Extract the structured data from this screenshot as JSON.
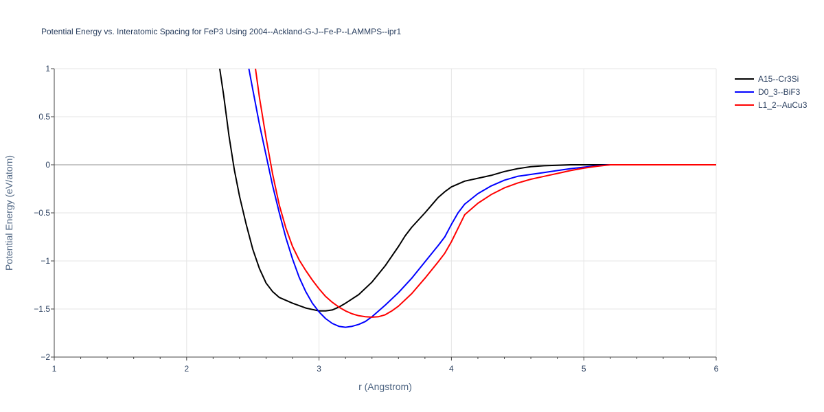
{
  "chart_data": {
    "type": "line",
    "title": "Potential Energy vs. Interatomic Spacing for FeP3 Using 2004--Ackland-G-J--Fe-P--LAMMPS--ipr1",
    "xlabel": "r (Angstrom)",
    "ylabel": "Potential Energy (eV/atom)",
    "xlim": [
      1,
      6
    ],
    "ylim": [
      -2,
      1
    ],
    "xticks": [
      1,
      2,
      3,
      4,
      5,
      6
    ],
    "xtick_labels": [
      "1",
      "2",
      "3",
      "4",
      "5",
      "6"
    ],
    "yticks": [
      -2,
      -1.5,
      -1,
      -0.5,
      0,
      0.5,
      1
    ],
    "ytick_labels": [
      "−2",
      "−1.5",
      "−1",
      "−0.5",
      "0",
      "0.5",
      "1"
    ],
    "grid": true,
    "legend_position": "top-right",
    "series": [
      {
        "name": "A15--Cr3Si",
        "color": "#000000",
        "x": [
          2.25,
          2.28,
          2.32,
          2.36,
          2.4,
          2.45,
          2.5,
          2.55,
          2.6,
          2.65,
          2.7,
          2.8,
          2.9,
          3.0,
          3.05,
          3.1,
          3.15,
          3.2,
          3.3,
          3.4,
          3.5,
          3.6,
          3.65,
          3.7,
          3.8,
          3.85,
          3.9,
          3.95,
          4.0,
          4.1,
          4.2,
          4.3,
          4.4,
          4.5,
          4.6,
          4.7,
          4.8,
          4.9,
          5.0,
          5.2,
          5.4,
          6.0
        ],
        "y": [
          1.0,
          0.72,
          0.3,
          -0.05,
          -0.33,
          -0.62,
          -0.88,
          -1.08,
          -1.23,
          -1.32,
          -1.38,
          -1.44,
          -1.49,
          -1.52,
          -1.52,
          -1.51,
          -1.48,
          -1.44,
          -1.35,
          -1.22,
          -1.05,
          -0.85,
          -0.74,
          -0.65,
          -0.5,
          -0.42,
          -0.34,
          -0.28,
          -0.23,
          -0.17,
          -0.14,
          -0.11,
          -0.07,
          -0.04,
          -0.02,
          -0.01,
          -0.005,
          0,
          0,
          0,
          0,
          0
        ]
      },
      {
        "name": "D0_3--BiF3",
        "color": "#0000ff",
        "x": [
          2.47,
          2.5,
          2.55,
          2.6,
          2.65,
          2.7,
          2.75,
          2.8,
          2.85,
          2.9,
          2.95,
          3.0,
          3.05,
          3.1,
          3.15,
          3.2,
          3.25,
          3.3,
          3.35,
          3.4,
          3.5,
          3.6,
          3.7,
          3.8,
          3.9,
          3.95,
          4.0,
          4.05,
          4.1,
          4.2,
          4.3,
          4.4,
          4.5,
          4.6,
          4.7,
          4.8,
          4.9,
          5.0,
          5.1,
          5.2,
          5.4,
          6.0
        ],
        "y": [
          1.0,
          0.78,
          0.42,
          0.1,
          -0.22,
          -0.5,
          -0.76,
          -0.98,
          -1.17,
          -1.32,
          -1.44,
          -1.53,
          -1.6,
          -1.65,
          -1.68,
          -1.69,
          -1.68,
          -1.66,
          -1.63,
          -1.58,
          -1.46,
          -1.33,
          -1.18,
          -1.01,
          -0.84,
          -0.75,
          -0.62,
          -0.5,
          -0.41,
          -0.3,
          -0.22,
          -0.16,
          -0.12,
          -0.1,
          -0.08,
          -0.06,
          -0.04,
          -0.025,
          -0.01,
          0,
          0,
          0
        ]
      },
      {
        "name": "L1_2--AuCu3",
        "color": "#ff0000",
        "x": [
          2.52,
          2.55,
          2.6,
          2.65,
          2.7,
          2.75,
          2.8,
          2.85,
          2.9,
          2.95,
          3.0,
          3.05,
          3.1,
          3.15,
          3.2,
          3.25,
          3.3,
          3.35,
          3.4,
          3.45,
          3.5,
          3.55,
          3.6,
          3.7,
          3.8,
          3.9,
          3.95,
          4.0,
          4.05,
          4.1,
          4.2,
          4.3,
          4.4,
          4.5,
          4.6,
          4.7,
          4.8,
          4.9,
          5.0,
          5.1,
          5.2,
          5.4,
          6.0
        ],
        "y": [
          1.0,
          0.7,
          0.28,
          -0.1,
          -0.42,
          -0.66,
          -0.85,
          -0.99,
          -1.1,
          -1.2,
          -1.29,
          -1.37,
          -1.43,
          -1.48,
          -1.52,
          -1.55,
          -1.57,
          -1.58,
          -1.585,
          -1.58,
          -1.56,
          -1.52,
          -1.47,
          -1.34,
          -1.18,
          -1.01,
          -0.92,
          -0.8,
          -0.66,
          -0.52,
          -0.4,
          -0.31,
          -0.24,
          -0.19,
          -0.15,
          -0.12,
          -0.09,
          -0.06,
          -0.035,
          -0.015,
          0,
          0,
          0
        ]
      }
    ]
  }
}
